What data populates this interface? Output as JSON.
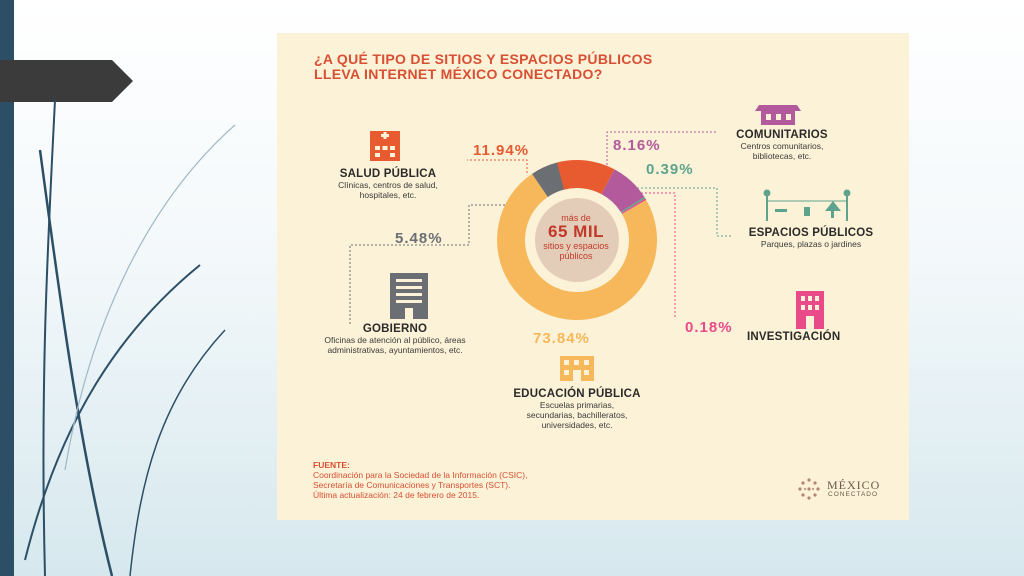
{
  "infographic": {
    "title_line1": "¿A QUÉ TIPO DE SITIOS Y ESPACIOS PÚBLICOS",
    "title_line2": "LLEVA INTERNET MÉXICO CONECTADO?",
    "center_line1": "más de",
    "center_line2": "65 MIL",
    "center_line3": "sitios y espacios",
    "center_line4": "públicos",
    "source_header": "FUENTE:",
    "source_line1": "Coordinación para la Sociedad de la Información (CSIC),",
    "source_line2": "Secretaría de Comunicaciones y Transportes (SCT).",
    "source_line3": "Última actualización: 24 de febrero de 2015.",
    "logo_line1": "MÉXICO",
    "logo_line2": "CONECTADO"
  },
  "categories": {
    "salud": {
      "name": "SALUD PÚBLICA",
      "desc1": "Clínicas, centros de salud,",
      "desc2": "hospitales, etc.",
      "pct": "11.94%",
      "icon": "hospital-icon"
    },
    "comunitarios": {
      "name": "COMUNITARIOS",
      "desc1": "Centros comunitarios,",
      "desc2": "bibliotecas, etc.",
      "pct": "8.16%",
      "icon": "community-building-icon"
    },
    "espacios": {
      "name": "ESPACIOS PÚBLICOS",
      "desc1": "Parques, plazas o jardines",
      "pct": "0.39%",
      "icon": "park-icon"
    },
    "gobierno": {
      "name": "GOBIERNO",
      "desc1": "Oficinas de atención al público, áreas",
      "desc2": "administrativas, ayuntamientos, etc.",
      "pct": "5.48%",
      "icon": "government-building-icon"
    },
    "investigacion": {
      "name": "INVESTIGACIÓN",
      "pct": "0.18%",
      "icon": "research-building-icon"
    },
    "educacion": {
      "name": "EDUCACIÓN PÚBLICA",
      "desc1": "Escuelas primarias,",
      "desc2": "secundarias, bachilleratos,",
      "desc3": "universidades, etc.",
      "pct": "73.84%",
      "icon": "school-icon"
    }
  },
  "chart_data": {
    "type": "pie",
    "categories": [
      "Salud Pública",
      "Comunitarios",
      "Espacios Públicos",
      "Investigación",
      "Educación Pública",
      "Gobierno"
    ],
    "values": [
      11.94,
      8.16,
      0.39,
      0.18,
      73.84,
      5.48
    ],
    "colors": [
      "#e85a30",
      "#b35a9c",
      "#5fa38e",
      "#e84a8a",
      "#f6b85a",
      "#6b6f74"
    ]
  },
  "colors": {
    "salud": "#e85a30",
    "comunitarios": "#b35a9c",
    "espacios": "#5fa38e",
    "investigacion": "#e84a8a",
    "educacion": "#f6b85a",
    "gobierno": "#6b6f74",
    "title": "#d84f33",
    "background": "#fbf2d7",
    "center_disc": "#e4cdb8"
  }
}
